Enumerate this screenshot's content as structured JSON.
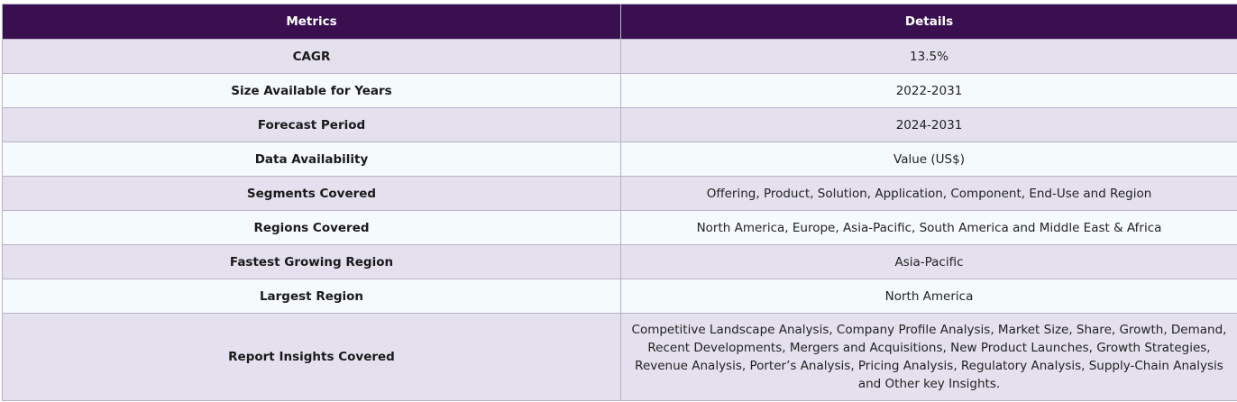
{
  "table": {
    "headers": [
      "Metrics",
      "Details"
    ],
    "rows": [
      {
        "metric": "CAGR",
        "detail": "13.5%"
      },
      {
        "metric": "Size Available for Years",
        "detail": "2022-2031"
      },
      {
        "metric": "Forecast Period",
        "detail": "2024-2031"
      },
      {
        "metric": "Data Availability",
        "detail": "Value (US$)"
      },
      {
        "metric": "Segments Covered",
        "detail": "Offering, Product, Solution, Application, Component, End-Use and Region"
      },
      {
        "metric": "Regions Covered",
        "detail": "North America, Europe, Asia-Pacific, South America and Middle East & Africa"
      },
      {
        "metric": "Fastest Growing Region",
        "detail": "Asia-Pacific"
      },
      {
        "metric": "Largest Region",
        "detail": "North America"
      },
      {
        "metric": "Report Insights Covered",
        "detail": "Competitive Landscape Analysis, Company Profile Analysis, Market Size, Share, Growth, Demand, Recent Developments, Mergers and Acquisitions, New Product Launches, Growth Strategies, Revenue Analysis, Porter’s Analysis, Pricing Analysis, Regulatory Analysis, Supply-Chain Analysis and Other key Insights."
      }
    ]
  },
  "colors": {
    "header_bg": "#3a0f4f",
    "row_odd": "#e4e0ee",
    "row_even": "#f5fafd"
  }
}
